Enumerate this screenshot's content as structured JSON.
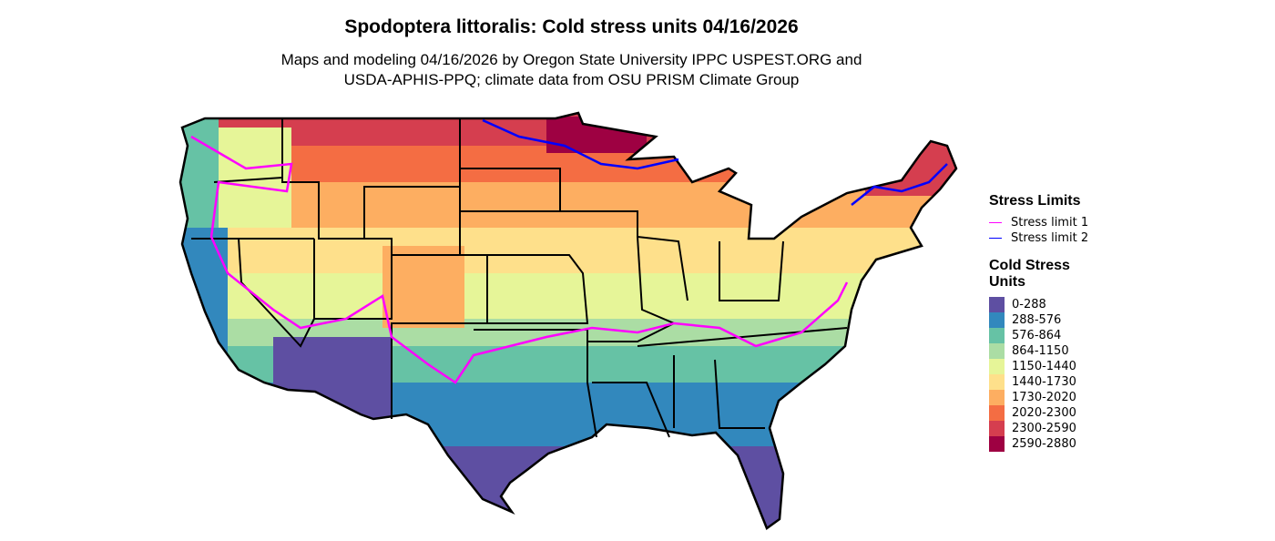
{
  "title": "Spodoptera littoralis: Cold stress units 04/16/2026",
  "subtitle_line1": "Maps and modeling 04/16/2026 by Oregon State University IPPC USPEST.ORG and",
  "subtitle_line2": "USDA-APHIS-PPQ; climate data from OSU PRISM Climate Group",
  "legend": {
    "stress_title": "Stress Limits",
    "stress_items": [
      {
        "label": "Stress limit 1",
        "color": "#ff00ff"
      },
      {
        "label": "Stress limit 2",
        "color": "#0000ff"
      }
    ],
    "units_title_line1": "Cold Stress",
    "units_title_line2": "Units",
    "classes": [
      {
        "label": "0-288",
        "color": "#5e4fa2"
      },
      {
        "label": "288-576",
        "color": "#3288bd"
      },
      {
        "label": "576-864",
        "color": "#66c2a5"
      },
      {
        "label": "864-1150",
        "color": "#abdda4"
      },
      {
        "label": "1150-1440",
        "color": "#e6f598"
      },
      {
        "label": "1440-1730",
        "color": "#fee08b"
      },
      {
        "label": "1730-2020",
        "color": "#fdae61"
      },
      {
        "label": "2020-2300",
        "color": "#f46d43"
      },
      {
        "label": "2300-2590",
        "color": "#d53e4f"
      },
      {
        "label": "2590-2880",
        "color": "#9e0142"
      }
    ]
  }
}
